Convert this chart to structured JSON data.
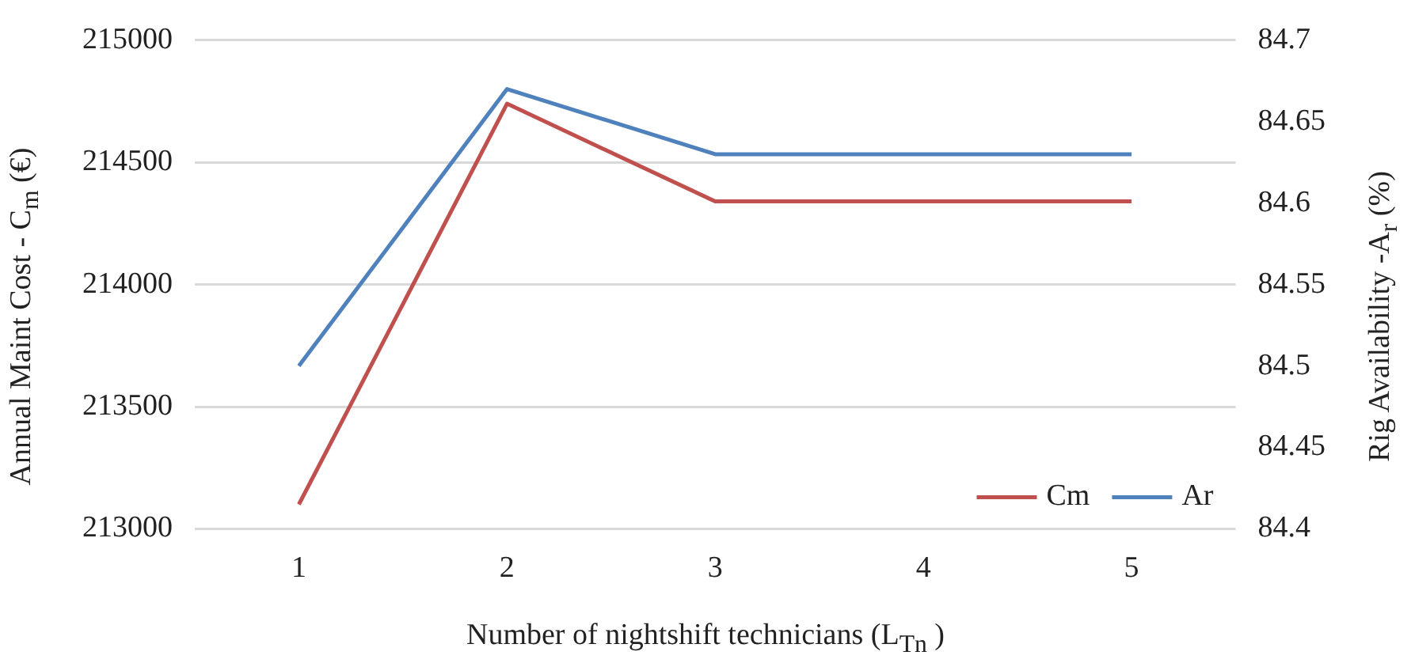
{
  "chart_data": {
    "type": "line",
    "xlabel": "Number of nightshift technicians (L$_{Tn}$ )",
    "ylabel": "Annual Maint Cost - C$_{m}$ (€)",
    "y2label": "Rig Availability -A$_{r}$  (%)",
    "categories": [
      "1",
      "2",
      "3",
      "4",
      "5"
    ],
    "series": [
      {
        "name": "Cm",
        "color": "#c0504d",
        "values": [
          213100,
          214740,
          214340,
          214340,
          214340
        ]
      },
      {
        "name": "Ar",
        "color": "#4f81bd",
        "axis": "y2",
        "values": [
          84.5,
          84.67,
          84.63,
          84.63,
          84.63
        ]
      }
    ],
    "ylim": [
      213000,
      215000
    ],
    "yticks": [
      213000,
      213500,
      214000,
      214500,
      215000
    ],
    "y2lim": [
      84.4,
      84.7
    ],
    "y2ticks": [
      84.4,
      {
        "value": 84.45,
        "label": "84.45"
      },
      {
        "value": 84.5,
        "label": "84.5"
      },
      {
        "value": 84.55,
        "label": "84.55"
      },
      {
        "value": 84.6,
        "label": "84.6"
      },
      {
        "value": 84.65,
        "label": "84.65"
      },
      {
        "value": 84.7,
        "label": "84.7"
      }
    ],
    "grid": "y",
    "legend": "bottom right",
    "marker": "none",
    "line_style": "solid"
  }
}
